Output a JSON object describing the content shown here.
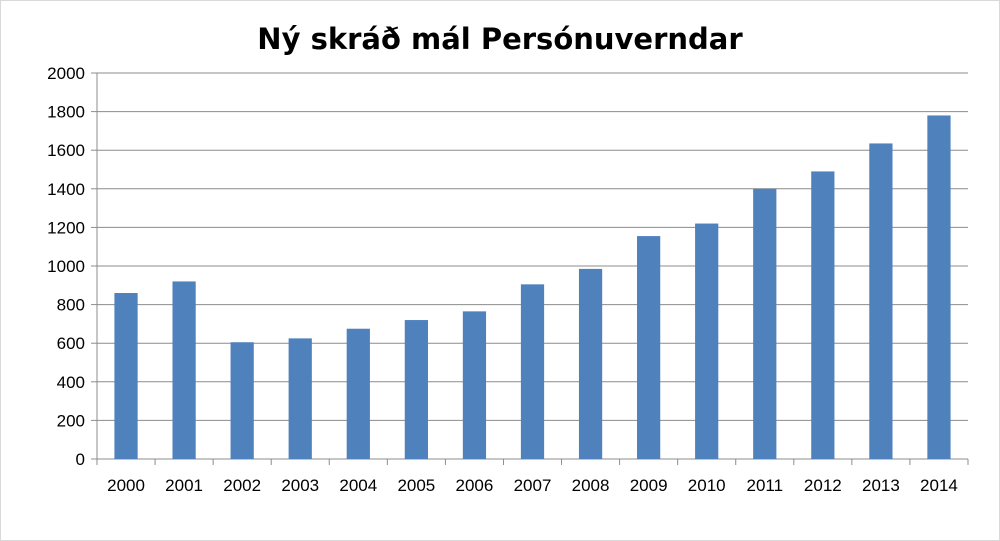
{
  "chart_data": {
    "type": "bar",
    "title": "Ný skráð mál Persónuverndar",
    "xlabel": "",
    "ylabel": "",
    "categories": [
      "2000",
      "2001",
      "2002",
      "2003",
      "2004",
      "2005",
      "2006",
      "2007",
      "2008",
      "2009",
      "2010",
      "2011",
      "2012",
      "2013",
      "2014"
    ],
    "series": [
      {
        "values": [
          860,
          920,
          605,
          625,
          675,
          720,
          765,
          905,
          985,
          1155,
          1220,
          1400,
          1490,
          1635,
          1780
        ]
      }
    ],
    "ylim": [
      0,
      2000
    ],
    "yticks": [
      0,
      200,
      400,
      600,
      800,
      1000,
      1200,
      1400,
      1600,
      1800,
      2000
    ],
    "grid": true,
    "legend": "none",
    "bar_color": "#4f81bd",
    "grid_color": "#8c8c8c",
    "axis_color": "#8c8c8c"
  }
}
